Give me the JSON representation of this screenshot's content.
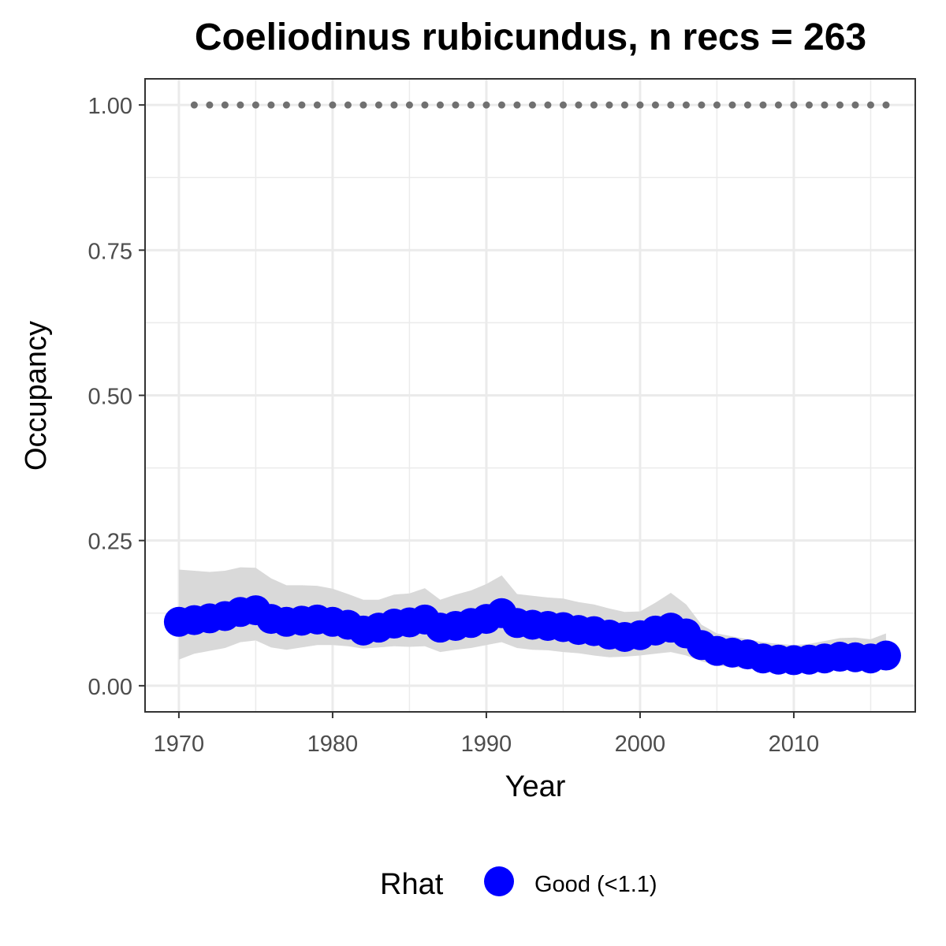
{
  "chart_data": {
    "type": "line",
    "title": "Coeliodinus rubicundus, n recs = 263",
    "xlabel": "Year",
    "ylabel": "Occupancy",
    "xlim": [
      1967.8,
      2017.9
    ],
    "ylim": [
      -0.045,
      1.045
    ],
    "x_ticks": [
      1970,
      1980,
      1990,
      2000,
      2010
    ],
    "x_tick_labels": [
      "1970",
      "1980",
      "1990",
      "2000",
      "2010"
    ],
    "y_ticks": [
      0,
      0.25,
      0.5,
      0.75,
      1.0
    ],
    "y_tick_labels": [
      "0.00",
      "0.25",
      "0.50",
      "0.75",
      "1.00"
    ],
    "grid": true,
    "colors": {
      "points": "#0000ff",
      "ribbon": "#d9d9d9",
      "dotted_line": "#707070",
      "grid": "#ebebeb",
      "panel_border": "#333333"
    },
    "legend": {
      "position": "bottom",
      "title": "Rhat",
      "entries": [
        {
          "label": "Good (<1.1)",
          "color": "#0000ff"
        }
      ]
    },
    "series": [
      {
        "kind": "points",
        "x": [
          1970,
          1971,
          1972,
          1973,
          1974,
          1975,
          1976,
          1977,
          1978,
          1979,
          1980,
          1981,
          1982,
          1983,
          1984,
          1985,
          1986,
          1987,
          1988,
          1989,
          1990,
          1991,
          1992,
          1993,
          1994,
          1995,
          1996,
          1997,
          1998,
          1999,
          2000,
          2001,
          2002,
          2003,
          2004,
          2005,
          2006,
          2007,
          2008,
          2009,
          2010,
          2011,
          2012,
          2013,
          2014,
          2015,
          2016
        ],
        "y": [
          0.11,
          0.113,
          0.116,
          0.12,
          0.127,
          0.13,
          0.115,
          0.11,
          0.112,
          0.114,
          0.11,
          0.105,
          0.095,
          0.1,
          0.107,
          0.109,
          0.114,
          0.1,
          0.103,
          0.108,
          0.115,
          0.125,
          0.108,
          0.105,
          0.103,
          0.101,
          0.096,
          0.094,
          0.088,
          0.084,
          0.087,
          0.095,
          0.1,
          0.09,
          0.07,
          0.06,
          0.057,
          0.054,
          0.047,
          0.045,
          0.044,
          0.045,
          0.047,
          0.05,
          0.049,
          0.047,
          0.052
        ]
      },
      {
        "kind": "ribbon",
        "x": [
          1970,
          1971,
          1972,
          1973,
          1974,
          1975,
          1976,
          1977,
          1978,
          1979,
          1980,
          1981,
          1982,
          1983,
          1984,
          1985,
          1986,
          1987,
          1988,
          1989,
          1990,
          1991,
          1992,
          1993,
          1994,
          1995,
          1996,
          1997,
          1998,
          1999,
          2000,
          2001,
          2002,
          2003,
          2004,
          2005,
          2006,
          2007,
          2008,
          2009,
          2010,
          2011,
          2012,
          2013,
          2014,
          2015,
          2016
        ],
        "lower": [
          0.045,
          0.055,
          0.06,
          0.065,
          0.075,
          0.078,
          0.066,
          0.062,
          0.066,
          0.07,
          0.07,
          0.068,
          0.064,
          0.066,
          0.068,
          0.067,
          0.068,
          0.058,
          0.062,
          0.065,
          0.07,
          0.075,
          0.065,
          0.062,
          0.061,
          0.058,
          0.056,
          0.052,
          0.049,
          0.05,
          0.052,
          0.055,
          0.058,
          0.052,
          0.042,
          0.035,
          0.032,
          0.03,
          0.027,
          0.025,
          0.025,
          0.026,
          0.027,
          0.028,
          0.028,
          0.027,
          0.03
        ],
        "upper": [
          0.2,
          0.198,
          0.196,
          0.198,
          0.204,
          0.203,
          0.185,
          0.173,
          0.173,
          0.172,
          0.167,
          0.158,
          0.148,
          0.148,
          0.157,
          0.159,
          0.168,
          0.148,
          0.157,
          0.164,
          0.175,
          0.19,
          0.158,
          0.155,
          0.152,
          0.15,
          0.144,
          0.14,
          0.133,
          0.127,
          0.128,
          0.143,
          0.16,
          0.14,
          0.105,
          0.09,
          0.085,
          0.08,
          0.075,
          0.072,
          0.07,
          0.072,
          0.077,
          0.082,
          0.083,
          0.08,
          0.09
        ]
      },
      {
        "kind": "dotted",
        "x": [
          1971,
          1972,
          1973,
          1974,
          1975,
          1976,
          1977,
          1978,
          1979,
          1980,
          1981,
          1982,
          1983,
          1984,
          1985,
          1986,
          1987,
          1988,
          1989,
          1990,
          1991,
          1992,
          1993,
          1994,
          1995,
          1996,
          1997,
          1998,
          1999,
          2000,
          2001,
          2002,
          2003,
          2004,
          2005,
          2006,
          2007,
          2008,
          2009,
          2010,
          2011,
          2012,
          2013,
          2014,
          2015,
          2016
        ],
        "y": [
          1,
          1,
          1,
          1,
          1,
          1,
          1,
          1,
          1,
          1,
          1,
          1,
          1,
          1,
          1,
          1,
          1,
          1,
          1,
          1,
          1,
          1,
          1,
          1,
          1,
          1,
          1,
          1,
          1,
          1,
          1,
          1,
          1,
          1,
          1,
          1,
          1,
          1,
          1,
          1,
          1,
          1,
          1,
          1,
          1,
          1
        ]
      }
    ]
  }
}
